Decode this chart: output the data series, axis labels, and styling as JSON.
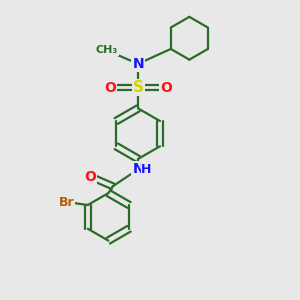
{
  "bg_color": "#e8e8e8",
  "bond_color": "#2a6b2a",
  "atom_colors": {
    "N": "#1414ff",
    "O": "#ff1414",
    "S": "#d4d400",
    "Br": "#b85c00",
    "C": "#2a6b2a"
  },
  "figsize": [
    3.0,
    3.0
  ],
  "dpi": 100
}
